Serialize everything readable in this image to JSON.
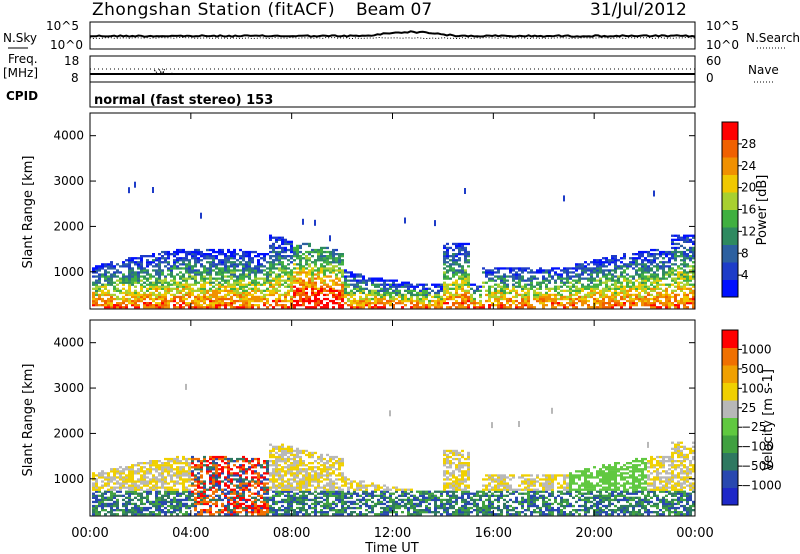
{
  "header": {
    "title": "Zhongshan Station (fitACF)",
    "beam": "Beam 07",
    "date": "31/Jul/2012"
  },
  "chart_data": [
    {
      "type": "line",
      "panel": "noise",
      "left_label": "N.Sky",
      "right_label": "N.Search",
      "left_ticks": [
        "10^5",
        "10^0"
      ],
      "right_ticks": [
        "10^5",
        "10^0"
      ],
      "scale": "log"
    },
    {
      "type": "line",
      "panel": "frequency",
      "left_label": "Freq.",
      "left_unit": "[MHz]",
      "right_label": "Nave",
      "left_ticks": [
        "18",
        "8"
      ],
      "right_ticks": [
        "60",
        "0"
      ]
    },
    {
      "type": "text",
      "panel": "cpid",
      "label": "CPID",
      "value": "normal (fast stereo) 153"
    },
    {
      "type": "heatmap",
      "panel": "power",
      "ylabel": "Slant Range [km]",
      "ylim": [
        180,
        4500
      ],
      "yticks": [
        "1000",
        "2000",
        "3000",
        "4000"
      ],
      "xticks": [
        "00:00",
        "04:00",
        "08:00",
        "12:00",
        "16:00",
        "20:00",
        "00:00"
      ],
      "xlim_hours": [
        0,
        24
      ],
      "colorbar": {
        "label": "Power [dB]",
        "ticks": [
          "4",
          "8",
          "12",
          "16",
          "20",
          "24",
          "28"
        ],
        "range": [
          0,
          30
        ],
        "colors": [
          "#0010ff",
          "#1e3cc8",
          "#2c60a0",
          "#2e8a60",
          "#40b040",
          "#a8d030",
          "#f0c800",
          "#f09000",
          "#f06000",
          "#ff0000"
        ]
      }
    },
    {
      "type": "heatmap",
      "panel": "velocity",
      "ylabel": "Slant Range [km]",
      "ylim": [
        180,
        4500
      ],
      "yticks": [
        "1000",
        "2000",
        "3000",
        "4000"
      ],
      "xticks": [
        "00:00",
        "04:00",
        "08:00",
        "12:00",
        "16:00",
        "20:00",
        "00:00"
      ],
      "xlim_hours": [
        0,
        24
      ],
      "xlabel": "Time UT",
      "colorbar": {
        "label": "Velocity [m s-1]",
        "ticks": [
          "1000",
          "500",
          "100",
          "25",
          "−25",
          "−100",
          "−500",
          "−1000"
        ],
        "colors": [
          "#1e28c8",
          "#2848b0",
          "#2e7860",
          "#40a040",
          "#60c840",
          "#b8b8b8",
          "#f0d000",
          "#f0a000",
          "#f07000",
          "#ff0000"
        ]
      }
    }
  ]
}
